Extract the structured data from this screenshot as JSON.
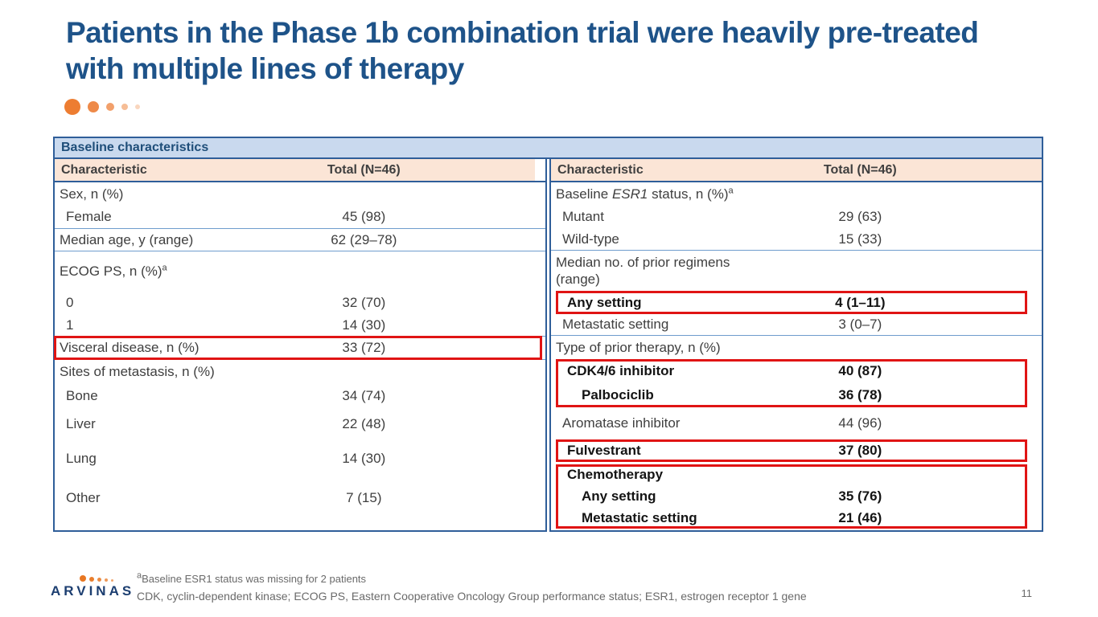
{
  "slide": {
    "title_line1": "Patients in the Phase 1b combination trial were heavily pre-treated",
    "title_line2": "with multiple lines of therapy",
    "page_number": "11"
  },
  "colors": {
    "title_blue": "#1e5389",
    "accent_orange": "#ed7d31",
    "band_bg": "#c9d9ee",
    "band_text": "#1f4e79",
    "column_header_bg": "#fbe5d6",
    "table_border_blue": "#2f5e99",
    "row_line_blue": "#6f9ccd",
    "highlight_red": "#e01414",
    "body_text": "#3f3f3f",
    "footnote_gray": "#6a6a6a"
  },
  "table": {
    "band_title": "Baseline characteristics",
    "left": {
      "col_characteristic": "Characteristic",
      "col_total": "Total (N=46)",
      "rows": [
        {
          "label": "Sex, n (%)",
          "value": ""
        },
        {
          "label": "Female",
          "value": "45 (98)"
        },
        {
          "label": "Median age, y (range)",
          "value": "62 (29–78)"
        },
        {
          "label": "ECOG PS, n (%)",
          "sup": "a",
          "value": ""
        },
        {
          "label": "0",
          "value": "32 (70)"
        },
        {
          "label": "1",
          "value": "14 (30)"
        },
        {
          "label": "Visceral disease, n (%)",
          "value": "33 (72)",
          "highlighted": true
        },
        {
          "label": "Sites of metastasis, n (%)",
          "value": ""
        },
        {
          "label": "Bone",
          "value": "34 (74)"
        },
        {
          "label": "Liver",
          "value": "22 (48)"
        },
        {
          "label": "Lung",
          "value": "14 (30)"
        },
        {
          "label": "Other",
          "value": "7 (15)"
        }
      ]
    },
    "right": {
      "col_characteristic": "Characteristic",
      "col_total": "Total (N=46)",
      "rows": [
        {
          "label_prefix": "Baseline ",
          "label_em": "ESR1",
          "label_suffix": " status, n (%)",
          "sup": "a",
          "value": ""
        },
        {
          "label": "Mutant",
          "value": "29 (63)"
        },
        {
          "label": "Wild-type",
          "value": "15 (33)"
        },
        {
          "label": "Median no. of prior regimens (range)",
          "value": ""
        },
        {
          "label": "Any setting",
          "value": "4 (1–11)",
          "highlighted": true
        },
        {
          "label": "Metastatic setting",
          "value": "3 (0–7)"
        },
        {
          "label": "Type of prior therapy, n (%)",
          "value": ""
        },
        {
          "label": "CDK4/6 inhibitor",
          "value": "40 (87)",
          "highlighted": true
        },
        {
          "label": "Palbociclib",
          "value": "36 (78)",
          "highlighted": true
        },
        {
          "label": "Aromatase inhibitor",
          "value": "44 (96)"
        },
        {
          "label": "Fulvestrant",
          "value": "37 (80)",
          "highlighted": true
        },
        {
          "label": "Chemotherapy",
          "value": "",
          "highlighted": true
        },
        {
          "label": "Any setting",
          "value": "35 (76)",
          "highlighted": true
        },
        {
          "label": "Metastatic setting",
          "value": "21 (46)",
          "highlighted": true
        }
      ]
    }
  },
  "footer": {
    "footnote1_sup": "a",
    "footnote1_text": "Baseline ESR1 status was missing for 2 patients",
    "footnote2": "CDK, cyclin-dependent kinase; ECOG PS, Eastern Cooperative Oncology Group performance status; ESR1, estrogen receptor 1 gene",
    "logo_text": "ARVINAS"
  }
}
